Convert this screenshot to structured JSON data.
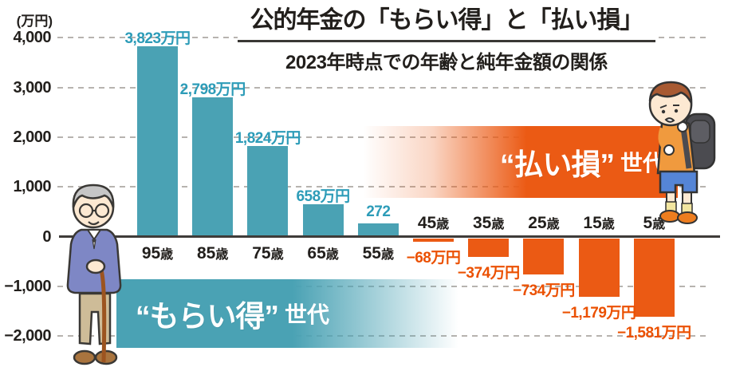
{
  "header": {
    "title": "公的年金の「もらい得」と「払い損」",
    "subtitle": "2023年時点での年齢と純年金額の関係"
  },
  "axis": {
    "unit": "(万円)",
    "ticks": [
      {
        "value": 4000,
        "label": "4,000"
      },
      {
        "value": 3000,
        "label": "3,000"
      },
      {
        "value": 2000,
        "label": "2,000"
      },
      {
        "value": 1000,
        "label": "1,000"
      },
      {
        "value": 0,
        "label": "0"
      },
      {
        "value": -1000,
        "label": "−1,000"
      },
      {
        "value": -2000,
        "label": "−2,000"
      }
    ]
  },
  "chart_data": {
    "type": "bar",
    "title": "公的年金の「もらい得」と「払い損」",
    "subtitle": "2023年時点での年齢と純年金額の関係",
    "ylabel": "(万円)",
    "ylim": [
      -2400,
      4400
    ],
    "grid": "dashed-horizontal",
    "categories": [
      "95歳",
      "85歳",
      "75歳",
      "65歳",
      "55歳",
      "45歳",
      "35歳",
      "25歳",
      "15歳",
      "5歳"
    ],
    "values": [
      3823,
      2798,
      1824,
      658,
      272,
      -68,
      -374,
      -734,
      -1179,
      -1581
    ],
    "value_labels": [
      "3,823万円",
      "2,798万円",
      "1,824万円",
      "658万円",
      "272",
      "−68万円",
      "−374万円",
      "−734万円",
      "−1,179万円",
      "−1,581万円"
    ],
    "positive_color": "#4aa2b4",
    "negative_color": "#eb5a14",
    "positive_label_color": "#2d9cb8",
    "negative_label_color": "#eb5000",
    "annotations": [
      {
        "text": "“もらい得”世代",
        "group": "ages 55-95",
        "color": "#4aa2b4"
      },
      {
        "text": "“払い損”世代",
        "group": "ages 5-45",
        "color": "#eb5a14"
      }
    ]
  },
  "bands": {
    "gain": {
      "quoted": "“もらい得”",
      "suffix": "世代"
    },
    "loss": {
      "quoted": "“払い損”",
      "suffix": "世代"
    }
  },
  "illustrations": {
    "left": "elderly-man-with-cane",
    "right": "worried-schoolboy-with-backpack"
  }
}
